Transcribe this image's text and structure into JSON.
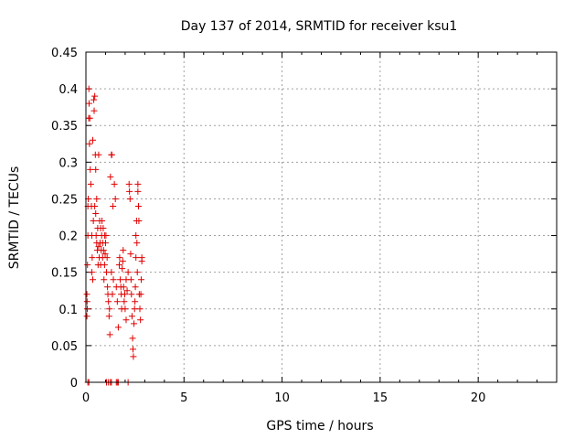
{
  "chart_data": {
    "type": "scatter",
    "title": "Day 137 of 2014, SRMTID for receiver ksu1",
    "xlabel": "GPS time / hours",
    "ylabel": "SRMTID / TECUs",
    "xlim": [
      0,
      24
    ],
    "ylim": [
      0,
      0.45
    ],
    "grid": true,
    "marker": "plus",
    "color": "#e00000",
    "x_ticks": [
      0,
      5,
      10,
      15,
      20
    ],
    "x_tick_labels": [
      "0",
      "5",
      "10",
      "15",
      "20"
    ],
    "y_ticks": [
      0,
      0.05,
      0.1,
      0.15,
      0.2,
      0.25,
      0.3,
      0.35,
      0.4,
      0.45
    ],
    "y_tick_labels": [
      "0",
      "0.05",
      "0.1",
      "0.15",
      "0.2",
      "0.25",
      "0.3",
      "0.35",
      "0.4",
      "0.45"
    ],
    "series": [
      {
        "name": "ksu1",
        "points": [
          [
            0.05,
            0.09
          ],
          [
            0.05,
            0.12
          ],
          [
            0.06,
            0.11
          ],
          [
            0.07,
            0.1
          ],
          [
            0.08,
            0.16
          ],
          [
            0.1,
            0.2
          ],
          [
            0.1,
            0.24
          ],
          [
            0.12,
            0.25
          ],
          [
            0.14,
            0.36
          ],
          [
            0.15,
            0.4
          ],
          [
            0.16,
            0.38
          ],
          [
            0.18,
            0.325
          ],
          [
            0.2,
            0.36
          ],
          [
            0.22,
            0.29
          ],
          [
            0.25,
            0.27
          ],
          [
            0.28,
            0.24
          ],
          [
            0.3,
            0.2
          ],
          [
            0.3,
            0.15
          ],
          [
            0.32,
            0.17
          ],
          [
            0.35,
            0.14
          ],
          [
            0.35,
            0.33
          ],
          [
            0.38,
            0.22
          ],
          [
            0.4,
            0.385
          ],
          [
            0.42,
            0.37
          ],
          [
            0.45,
            0.39
          ],
          [
            0.45,
            0.24
          ],
          [
            0.48,
            0.31
          ],
          [
            0.5,
            0.29
          ],
          [
            0.5,
            0.23
          ],
          [
            0.52,
            0.2
          ],
          [
            0.55,
            0.19
          ],
          [
            0.55,
            0.25
          ],
          [
            0.58,
            0.18
          ],
          [
            0.6,
            0.21
          ],
          [
            0.62,
            0.16
          ],
          [
            0.65,
            0.31
          ],
          [
            0.65,
            0.185
          ],
          [
            0.68,
            0.17
          ],
          [
            0.7,
            0.22
          ],
          [
            0.72,
            0.19
          ],
          [
            0.75,
            0.21
          ],
          [
            0.75,
            0.16
          ],
          [
            0.78,
            0.18
          ],
          [
            0.8,
            0.2
          ],
          [
            0.82,
            0.22
          ],
          [
            0.85,
            0.19
          ],
          [
            0.85,
            0.17
          ],
          [
            0.88,
            0.21
          ],
          [
            0.9,
            0.18
          ],
          [
            0.92,
            0.14
          ],
          [
            0.95,
            0.2
          ],
          [
            0.95,
            0.16
          ],
          [
            0.98,
            0.175
          ],
          [
            1.0,
            0.19
          ],
          [
            1.02,
            0.2
          ],
          [
            1.05,
            0.15
          ],
          [
            1.08,
            0.17
          ],
          [
            1.1,
            0.13
          ],
          [
            1.12,
            0.12
          ],
          [
            1.15,
            0.11
          ],
          [
            1.18,
            0.09
          ],
          [
            1.2,
            0.1
          ],
          [
            1.22,
            0.065
          ],
          [
            1.25,
            0.28
          ],
          [
            1.3,
            0.15
          ],
          [
            1.3,
            0.31
          ],
          [
            1.32,
            0.31
          ],
          [
            1.35,
            0.12
          ],
          [
            1.38,
            0.24
          ],
          [
            1.4,
            0.14
          ],
          [
            1.45,
            0.27
          ],
          [
            1.5,
            0.25
          ],
          [
            1.55,
            0.13
          ],
          [
            1.6,
            0.11
          ],
          [
            1.65,
            0.075
          ],
          [
            1.7,
            0.16
          ],
          [
            1.72,
            0.17
          ],
          [
            1.75,
            0.14
          ],
          [
            1.78,
            0.13
          ],
          [
            1.8,
            0.12
          ],
          [
            1.82,
            0.1
          ],
          [
            1.85,
            0.155
          ],
          [
            1.88,
            0.165
          ],
          [
            1.9,
            0.18
          ],
          [
            1.92,
            0.13
          ],
          [
            1.95,
            0.11
          ],
          [
            1.98,
            0.12
          ],
          [
            2.0,
            0.1
          ],
          [
            2.05,
            0.14
          ],
          [
            2.05,
            0.085
          ],
          [
            2.1,
            0.125
          ],
          [
            2.15,
            0.15
          ],
          [
            2.2,
            0.27
          ],
          [
            2.22,
            0.26
          ],
          [
            2.25,
            0.25
          ],
          [
            2.28,
            0.175
          ],
          [
            2.3,
            0.14
          ],
          [
            2.32,
            0.12
          ],
          [
            2.35,
            0.09
          ],
          [
            2.38,
            0.06
          ],
          [
            2.4,
            0.045
          ],
          [
            2.42,
            0.035
          ],
          [
            2.45,
            0.08
          ],
          [
            2.48,
            0.1
          ],
          [
            2.5,
            0.11
          ],
          [
            2.52,
            0.13
          ],
          [
            2.55,
            0.17
          ],
          [
            2.55,
            0.2
          ],
          [
            2.58,
            0.22
          ],
          [
            2.6,
            0.19
          ],
          [
            2.62,
            0.15
          ],
          [
            2.65,
            0.27
          ],
          [
            2.65,
            0.26
          ],
          [
            2.68,
            0.24
          ],
          [
            2.7,
            0.22
          ],
          [
            2.72,
            0.12
          ],
          [
            2.75,
            0.1
          ],
          [
            2.78,
            0.085
          ],
          [
            2.8,
            0.12
          ],
          [
            2.82,
            0.14
          ],
          [
            2.85,
            0.17
          ],
          [
            2.85,
            0.165
          ],
          [
            0.1,
            0.0
          ],
          [
            0.15,
            0.0
          ],
          [
            1.05,
            0.0
          ],
          [
            1.15,
            0.0
          ],
          [
            1.25,
            0.0
          ],
          [
            1.3,
            0.0
          ],
          [
            1.55,
            0.0
          ],
          [
            1.6,
            0.0
          ],
          [
            1.65,
            0.0
          ],
          [
            2.15,
            0.0
          ]
        ]
      }
    ]
  }
}
